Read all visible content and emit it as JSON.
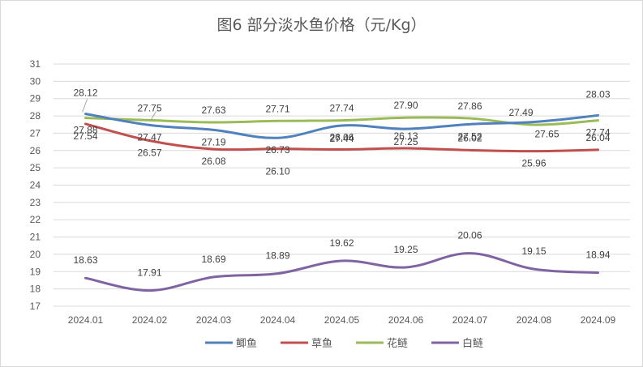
{
  "chart_data": {
    "type": "line",
    "title": "图6  部分淡水鱼价格（元/Kg）",
    "categories": [
      "2024.01",
      "2024.02",
      "2024.03",
      "2024.04",
      "2024.05",
      "2024.06",
      "2024.07",
      "2024.08",
      "2024.09"
    ],
    "y_ticks": [
      "17",
      "18",
      "19",
      "20",
      "21",
      "22",
      "23",
      "24",
      "25",
      "26",
      "27",
      "28",
      "29",
      "30",
      "31"
    ],
    "ylim": [
      17,
      31
    ],
    "grid": true,
    "legend_position": "bottom",
    "series": [
      {
        "name": "鲫鱼",
        "color": "#4f81bd",
        "values": [
          28.12,
          27.47,
          27.19,
          26.73,
          27.44,
          27.25,
          27.52,
          27.65,
          28.03
        ],
        "labels": [
          "28.12",
          "27.47",
          "27.19",
          "26.73",
          "27.44",
          "27.25",
          "27.52",
          "27.65",
          "28.03"
        ]
      },
      {
        "name": "草鱼",
        "color": "#c0504d",
        "values": [
          27.54,
          26.57,
          26.08,
          26.1,
          26.06,
          26.13,
          26.02,
          25.96,
          26.04
        ],
        "labels": [
          "27.54",
          "26.57",
          "26.08",
          "26.10",
          "26.06",
          "26.13",
          "26.02",
          "25.96",
          "26.04"
        ]
      },
      {
        "name": "花鲢",
        "color": "#9bbb59",
        "values": [
          27.88,
          27.75,
          27.63,
          27.71,
          27.74,
          27.9,
          27.86,
          27.49,
          27.74
        ],
        "labels": [
          "27.88",
          "27.75",
          "27.63",
          "27.71",
          "27.74",
          "27.90",
          "27.86",
          "27.49",
          "27.74"
        ]
      },
      {
        "name": "白鲢",
        "color": "#8064a2",
        "values": [
          18.63,
          17.91,
          18.69,
          18.89,
          19.62,
          19.25,
          20.06,
          19.15,
          18.94
        ],
        "labels": [
          "18.63",
          "17.91",
          "18.69",
          "18.89",
          "19.62",
          "19.25",
          "20.06",
          "19.15",
          "18.94"
        ]
      }
    ]
  }
}
